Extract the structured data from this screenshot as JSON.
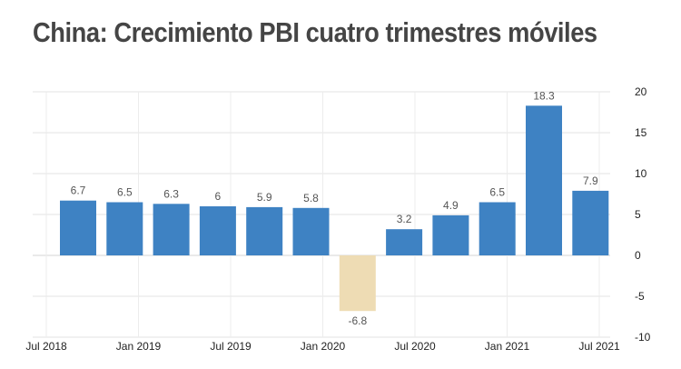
{
  "header": {
    "title": "China: Crecimiento PBI cuatro trimestres móviles"
  },
  "colors": {
    "positive": "#3e82c3",
    "negative": "#eedcb4"
  },
  "chart_data": {
    "type": "bar",
    "title": "China: Crecimiento PBI cuatro trimestres móviles",
    "categories": [
      "Q3 2018",
      "Q4 2018",
      "Q1 2019",
      "Q2 2019",
      "Q3 2019",
      "Q4 2019",
      "Q1 2020",
      "Q2 2020",
      "Q3 2020",
      "Q4 2020",
      "Q1 2021",
      "Q2 2021"
    ],
    "values": [
      6.7,
      6.5,
      6.3,
      6,
      5.9,
      5.8,
      -6.8,
      3.2,
      4.9,
      6.5,
      18.3,
      7.9
    ],
    "value_labels": [
      "6.7",
      "6.5",
      "6.3",
      "6",
      "5.9",
      "5.8",
      "-6.8",
      "3.2",
      "4.9",
      "6.5",
      "18.3",
      "7.9"
    ],
    "x_tick_labels": [
      "Jul 2018",
      "Jan 2019",
      "Jul 2019",
      "Jan 2020",
      "Jul 2020",
      "Jan 2021",
      "Jul 2021"
    ],
    "y_ticks": [
      20,
      15,
      10,
      5,
      0,
      -5,
      -10
    ],
    "ylim": [
      -10,
      20
    ],
    "yaxis_side": "right",
    "grid": true,
    "xlabel": "",
    "ylabel": ""
  }
}
